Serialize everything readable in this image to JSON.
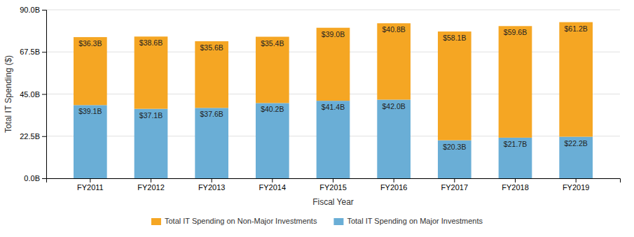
{
  "chart_data": {
    "type": "bar",
    "stacked": true,
    "categories": [
      "FY2011",
      "FY2012",
      "FY2013",
      "FY2014",
      "FY2015",
      "FY2016",
      "FY2017",
      "FY2018",
      "FY2019"
    ],
    "series": [
      {
        "name": "Total IT Spending on Major Investments",
        "color": "#6aaed6",
        "values": [
          39.1,
          37.1,
          37.6,
          40.2,
          41.4,
          42.0,
          20.3,
          21.7,
          22.2
        ],
        "value_labels": [
          "$39.1B",
          "$37.1B",
          "$37.6B",
          "$40.2B",
          "$41.4B",
          "$42.0B",
          "$20.3B",
          "$21.7B",
          "$22.2B"
        ]
      },
      {
        "name": "Total IT Spending on Non-Major Investments",
        "color": "#f5a623",
        "values": [
          36.3,
          38.6,
          35.6,
          35.4,
          39.0,
          40.8,
          58.1,
          59.6,
          61.2
        ],
        "value_labels": [
          "$36.3B",
          "$38.6B",
          "$35.6B",
          "$35.4B",
          "$39.0B",
          "$40.8B",
          "$58.1B",
          "$59.6B",
          "$61.2B"
        ]
      }
    ],
    "xlabel": "Fiscal Year",
    "ylabel": "Total IT Spending ($)",
    "ylim": [
      0,
      90
    ],
    "yticks": [
      {
        "value": 0,
        "label": "0.0B"
      },
      {
        "value": 22.5,
        "label": "22.5B"
      },
      {
        "value": 45.0,
        "label": "45.0B"
      },
      {
        "value": 67.5,
        "label": "67.5B"
      },
      {
        "value": 90,
        "label": "90.0B"
      }
    ],
    "grid": true,
    "legend": "bottom",
    "data_labels": true
  }
}
